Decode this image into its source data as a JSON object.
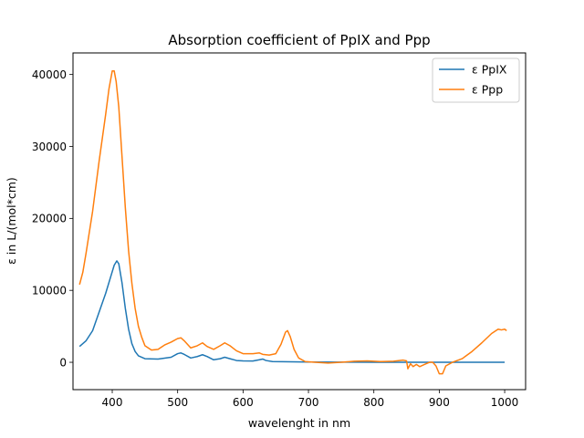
{
  "chart_data": {
    "type": "line",
    "title": "Absorption coefficient of PpIX and Ppp",
    "xlabel": "wavelenght in nm",
    "ylabel": "ε in L/(mol*cm)",
    "xlim": [
      340,
      1032
    ],
    "ylim": [
      -3800,
      43000
    ],
    "xticks": [
      400,
      500,
      600,
      700,
      800,
      900,
      1000
    ],
    "yticks": [
      0,
      10000,
      20000,
      30000,
      40000
    ],
    "grid": false,
    "legend_position": "top-right",
    "series": [
      {
        "name": "ε PpIX",
        "color": "#1f77b4",
        "points": [
          [
            350,
            2200
          ],
          [
            360,
            3000
          ],
          [
            370,
            4400
          ],
          [
            380,
            7000
          ],
          [
            390,
            9600
          ],
          [
            398,
            12000
          ],
          [
            403,
            13500
          ],
          [
            407,
            14100
          ],
          [
            410,
            13700
          ],
          [
            415,
            11000
          ],
          [
            420,
            7500
          ],
          [
            425,
            4600
          ],
          [
            430,
            2600
          ],
          [
            435,
            1500
          ],
          [
            440,
            900
          ],
          [
            450,
            500
          ],
          [
            470,
            450
          ],
          [
            490,
            700
          ],
          [
            500,
            1200
          ],
          [
            505,
            1300
          ],
          [
            510,
            1100
          ],
          [
            520,
            600
          ],
          [
            530,
            800
          ],
          [
            538,
            1050
          ],
          [
            545,
            800
          ],
          [
            555,
            350
          ],
          [
            565,
            500
          ],
          [
            572,
            700
          ],
          [
            580,
            500
          ],
          [
            590,
            250
          ],
          [
            600,
            200
          ],
          [
            615,
            180
          ],
          [
            625,
            350
          ],
          [
            630,
            450
          ],
          [
            635,
            250
          ],
          [
            645,
            100
          ],
          [
            660,
            80
          ],
          [
            700,
            40
          ],
          [
            750,
            20
          ],
          [
            800,
            10
          ],
          [
            900,
            0
          ],
          [
            1000,
            0
          ]
        ]
      },
      {
        "name": "ε Ppp",
        "color": "#ff7f0e",
        "points": [
          [
            350,
            10800
          ],
          [
            355,
            12500
          ],
          [
            360,
            15200
          ],
          [
            370,
            21000
          ],
          [
            380,
            28000
          ],
          [
            390,
            34500
          ],
          [
            395,
            38000
          ],
          [
            400,
            40500
          ],
          [
            403,
            40500
          ],
          [
            406,
            39000
          ],
          [
            410,
            35500
          ],
          [
            415,
            28500
          ],
          [
            420,
            21500
          ],
          [
            425,
            15500
          ],
          [
            430,
            11000
          ],
          [
            435,
            7500
          ],
          [
            440,
            5000
          ],
          [
            445,
            3500
          ],
          [
            450,
            2300
          ],
          [
            460,
            1700
          ],
          [
            470,
            1800
          ],
          [
            480,
            2400
          ],
          [
            490,
            2800
          ],
          [
            500,
            3300
          ],
          [
            505,
            3400
          ],
          [
            510,
            3000
          ],
          [
            520,
            2000
          ],
          [
            530,
            2300
          ],
          [
            538,
            2700
          ],
          [
            545,
            2200
          ],
          [
            555,
            1800
          ],
          [
            565,
            2300
          ],
          [
            572,
            2700
          ],
          [
            580,
            2300
          ],
          [
            590,
            1600
          ],
          [
            600,
            1200
          ],
          [
            615,
            1200
          ],
          [
            625,
            1300
          ],
          [
            630,
            1100
          ],
          [
            640,
            1000
          ],
          [
            650,
            1200
          ],
          [
            658,
            2500
          ],
          [
            665,
            4200
          ],
          [
            668,
            4400
          ],
          [
            672,
            3600
          ],
          [
            678,
            1800
          ],
          [
            685,
            600
          ],
          [
            695,
            100
          ],
          [
            710,
            0
          ],
          [
            730,
            -100
          ],
          [
            750,
            0
          ],
          [
            770,
            150
          ],
          [
            790,
            200
          ],
          [
            810,
            100
          ],
          [
            830,
            150
          ],
          [
            845,
            300
          ],
          [
            850,
            200
          ],
          [
            852,
            -900
          ],
          [
            856,
            -200
          ],
          [
            860,
            -600
          ],
          [
            865,
            -300
          ],
          [
            870,
            -600
          ],
          [
            875,
            -400
          ],
          [
            880,
            -200
          ],
          [
            885,
            0
          ],
          [
            890,
            0
          ],
          [
            895,
            -500
          ],
          [
            900,
            -1600
          ],
          [
            905,
            -1600
          ],
          [
            910,
            -500
          ],
          [
            920,
            0
          ],
          [
            935,
            500
          ],
          [
            950,
            1500
          ],
          [
            965,
            2700
          ],
          [
            980,
            4000
          ],
          [
            990,
            4600
          ],
          [
            995,
            4500
          ],
          [
            1000,
            4600
          ],
          [
            1003,
            4400
          ]
        ]
      }
    ]
  }
}
